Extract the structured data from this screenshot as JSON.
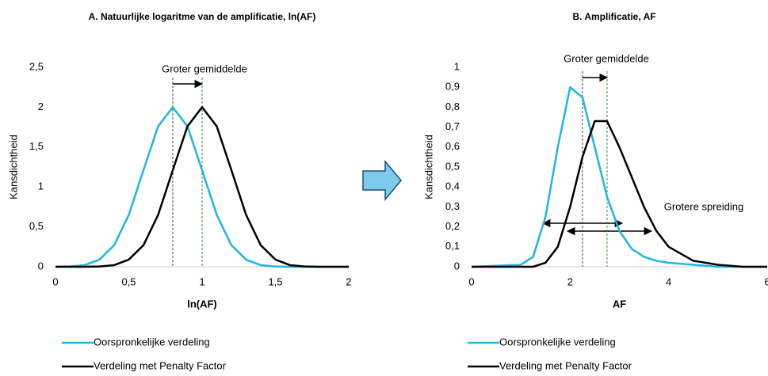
{
  "chart_data": [
    {
      "type": "line",
      "title": "A. Natuurlijke logaritme van de amplificatie, ln(AF)",
      "x_label": "ln(AF)",
      "y_label": "Kansdichtheid",
      "x": [
        0,
        0.1,
        0.2,
        0.3,
        0.4,
        0.5,
        0.6,
        0.7,
        0.8,
        0.9,
        1,
        1.1,
        1.2,
        1.3,
        1.4,
        1.5,
        1.6,
        1.7,
        1.8,
        1.9,
        2
      ],
      "series": [
        {
          "name": "Oorspronkelijke verdeling",
          "color": "#1fb5e8",
          "values": [
            0,
            0.004,
            0.02,
            0.09,
            0.27,
            0.65,
            1.21,
            1.76,
            2,
            1.76,
            1.21,
            0.65,
            0.27,
            0.09,
            0.02,
            0.004,
            0,
            0,
            0,
            0,
            0
          ]
        },
        {
          "name": "Verdeling met Penalty Factor",
          "color": "#000000",
          "values": [
            0,
            0,
            0,
            0.004,
            0.02,
            0.09,
            0.27,
            0.65,
            1.21,
            1.76,
            2,
            1.76,
            1.21,
            0.65,
            0.27,
            0.09,
            0.02,
            0.004,
            0,
            0,
            0
          ]
        }
      ],
      "xlim": [
        0,
        2
      ],
      "xticks": [
        0,
        {
          "value": 0.5,
          "label": "0,5"
        },
        1,
        {
          "value": 1.5,
          "label": "1,5"
        },
        2
      ],
      "ylim": [
        0,
        2.5
      ],
      "yticks": [
        0,
        {
          "value": 0.5,
          "label": "0,5"
        },
        1,
        {
          "value": 1.5,
          "label": "1,5"
        },
        2,
        {
          "value": 2.5,
          "label": "2,5"
        }
      ],
      "vlines": [
        0.8,
        1
      ],
      "annotations": [
        "Groter gemiddelde"
      ]
    },
    {
      "type": "line",
      "title": "B. Amplificatie, AF",
      "x_label": "AF",
      "y_label": "Kansdichtheid",
      "x": [
        0,
        1,
        1.25,
        1.5,
        1.75,
        2,
        2.25,
        2.5,
        2.75,
        3,
        3.25,
        3.5,
        3.75,
        4,
        4.5,
        5,
        5.5,
        6
      ],
      "series": [
        {
          "name": "Oorspronkelijke verdeling",
          "color": "#1fb5e8",
          "values": [
            0,
            0.01,
            0.05,
            0.25,
            0.6,
            0.9,
            0.85,
            0.6,
            0.35,
            0.18,
            0.09,
            0.05,
            0.03,
            0.02,
            0.01,
            0,
            0,
            0
          ]
        },
        {
          "name": "Verdeling met Penalty Factor",
          "color": "#000000",
          "values": [
            0,
            0,
            0,
            0.02,
            0.1,
            0.3,
            0.55,
            0.73,
            0.73,
            0.6,
            0.45,
            0.3,
            0.18,
            0.1,
            0.03,
            0.01,
            0,
            0
          ]
        }
      ],
      "xlim": [
        0,
        6
      ],
      "xticks": [
        0,
        2,
        4,
        6
      ],
      "ylim": [
        0,
        1
      ],
      "yticks": [
        0,
        {
          "value": 0.1,
          "label": "0,1"
        },
        {
          "value": 0.2,
          "label": "0,2"
        },
        {
          "value": 0.3,
          "label": "0,3"
        },
        {
          "value": 0.4,
          "label": "0,4"
        },
        {
          "value": 0.5,
          "label": "0,5"
        },
        {
          "value": 0.6,
          "label": "0,6"
        },
        {
          "value": 0.7,
          "label": "0,7"
        },
        {
          "value": 0.8,
          "label": "0,8"
        },
        {
          "value": 0.9,
          "label": "0,9"
        },
        1
      ],
      "vlines": [
        2.25,
        2.75
      ],
      "annotations": [
        "Groter gemiddelde",
        "Grotere spreiding"
      ]
    }
  ]
}
